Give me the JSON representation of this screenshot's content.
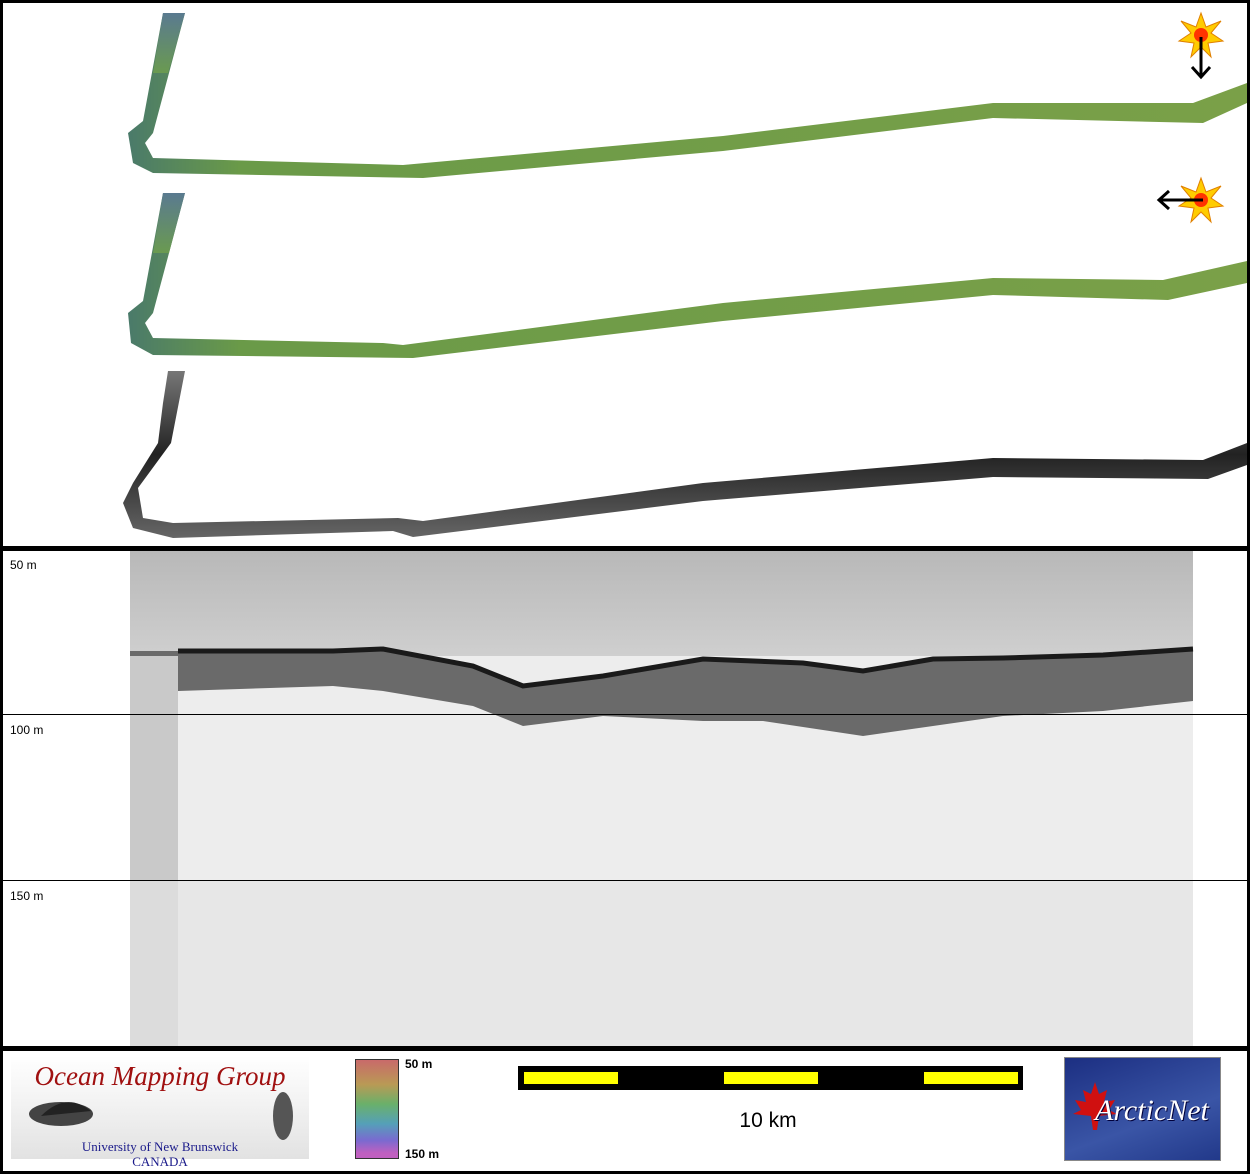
{
  "profile": {
    "depth_labels": [
      "50 m",
      "100 m",
      "150 m"
    ]
  },
  "footer": {
    "logo_title": "Ocean Mapping Group",
    "logo_subtitle_line1": "University of New Brunswick",
    "logo_subtitle_line2": "CANADA",
    "colorbar_top_label": "50 m",
    "colorbar_bottom_label": "150 m",
    "scale_label": "10 km",
    "partner_logo_text": "ArcticNet"
  },
  "map": {
    "illumination_icons": [
      "sun-arrow-down-icon",
      "sun-arrow-left-icon"
    ],
    "swath_colors": {
      "green_swath": "#6f9a46",
      "backscatter_swath": "#3a3a3a"
    }
  }
}
